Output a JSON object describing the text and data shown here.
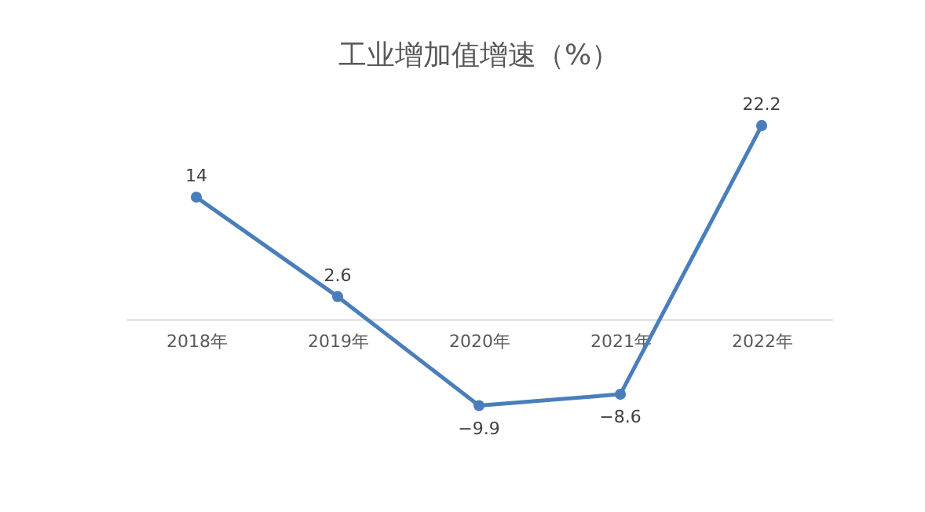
{
  "chart_data": {
    "type": "line",
    "title": "工业增加值增速（%）",
    "categories": [
      "2018年",
      "2019年",
      "2020年",
      "2021年",
      "2022年"
    ],
    "series": [
      {
        "color": "#4a7ebb",
        "values": [
          14,
          2.6,
          -9.9,
          -8.6,
          22.2
        ]
      }
    ],
    "data_labels": true,
    "marker": "circle",
    "line_style": "solid",
    "grid": false,
    "tick_labels": "x"
  }
}
